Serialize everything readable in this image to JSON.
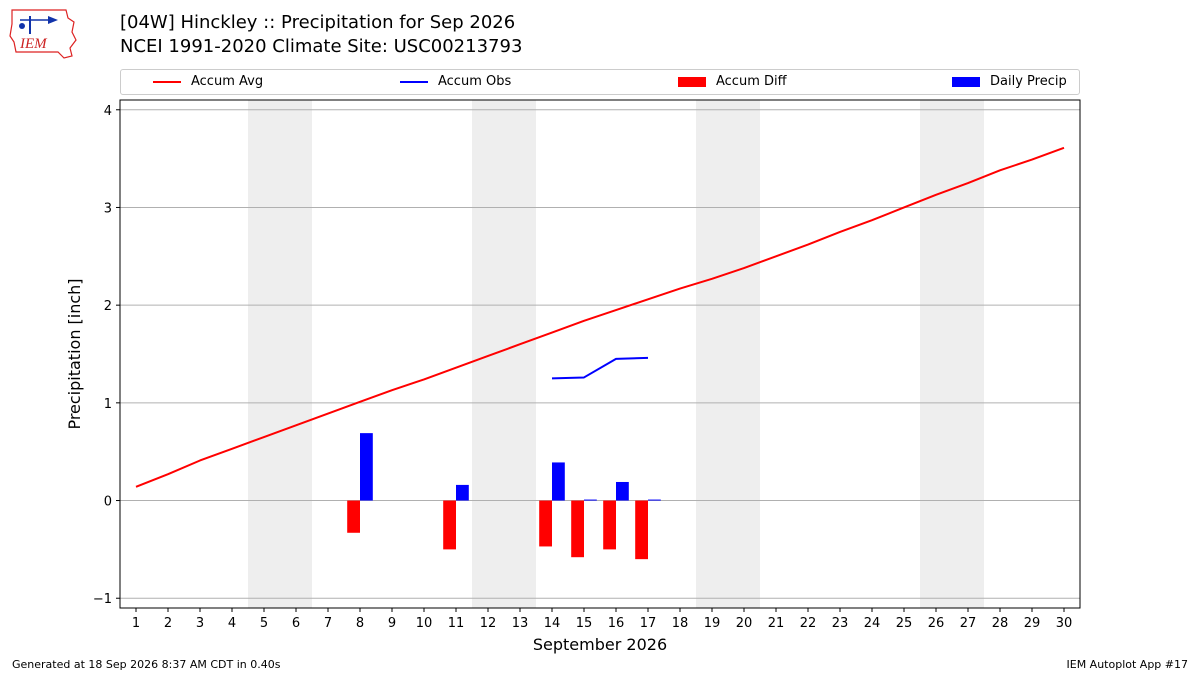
{
  "header": {
    "logo_text": "IEM",
    "title_line1": "[04W] Hinckley :: Precipitation for Sep 2026",
    "title_line2": "NCEI 1991-2020 Climate Site: USC00213793"
  },
  "legend": {
    "items": [
      {
        "label": "Accum Avg",
        "kind": "line",
        "color": "#ff0000"
      },
      {
        "label": "Accum Obs",
        "kind": "line",
        "color": "#0000ff"
      },
      {
        "label": "Accum Diff",
        "kind": "patch",
        "color": "#ff0000"
      },
      {
        "label": "Daily Precip",
        "kind": "patch",
        "color": "#0000ff"
      }
    ],
    "placement": "top"
  },
  "footer": {
    "left": "Generated at 18 Sep 2026 8:37 AM CDT in 0.40s",
    "right": "IEM Autoplot App #17"
  },
  "chart_data": {
    "type": "bar",
    "xlabel": "September 2026",
    "ylabel": "Precipitation [inch]",
    "xlim": [
      0.5,
      30.5
    ],
    "ylim": [
      -1.1,
      4.1
    ],
    "x_ticks": [
      1,
      2,
      3,
      4,
      5,
      6,
      7,
      8,
      9,
      10,
      11,
      12,
      13,
      14,
      15,
      16,
      17,
      18,
      19,
      20,
      21,
      22,
      23,
      24,
      25,
      26,
      27,
      28,
      29,
      30
    ],
    "y_ticks": [
      -1,
      0,
      1,
      2,
      3,
      4
    ],
    "grid": "horizontal",
    "weekend_shading": [
      [
        5,
        6
      ],
      [
        12,
        13
      ],
      [
        19,
        20
      ],
      [
        26,
        27
      ]
    ],
    "accum_avg": {
      "name": "Accum Avg",
      "color": "#ff0000",
      "x": [
        1,
        2,
        3,
        4,
        5,
        6,
        7,
        8,
        9,
        10,
        11,
        12,
        13,
        14,
        15,
        16,
        17,
        18,
        19,
        20,
        21,
        22,
        23,
        24,
        25,
        26,
        27,
        28,
        29,
        30
      ],
      "y": [
        0.14,
        0.27,
        0.41,
        0.53,
        0.65,
        0.77,
        0.89,
        1.01,
        1.13,
        1.24,
        1.36,
        1.48,
        1.6,
        1.72,
        1.84,
        1.95,
        2.06,
        2.17,
        2.27,
        2.38,
        2.5,
        2.62,
        2.75,
        2.87,
        3.0,
        3.13,
        3.25,
        3.38,
        3.49,
        3.61
      ]
    },
    "accum_obs": {
      "name": "Accum Obs",
      "color": "#0000ff",
      "x": [
        14,
        15,
        16,
        17
      ],
      "y": [
        1.25,
        1.26,
        1.45,
        1.46
      ]
    },
    "accum_diff": {
      "name": "Accum Diff",
      "color": "#ff0000",
      "x": [
        8,
        11,
        14,
        15,
        16,
        17
      ],
      "y": [
        -0.33,
        -0.5,
        -0.47,
        -0.58,
        -0.5,
        -0.6
      ]
    },
    "daily_precip": {
      "name": "Daily Precip",
      "color": "#0000ff",
      "x": [
        8,
        11,
        14,
        15,
        16,
        17
      ],
      "y": [
        0.69,
        0.16,
        0.39,
        0.01,
        0.19,
        0.01
      ]
    }
  }
}
